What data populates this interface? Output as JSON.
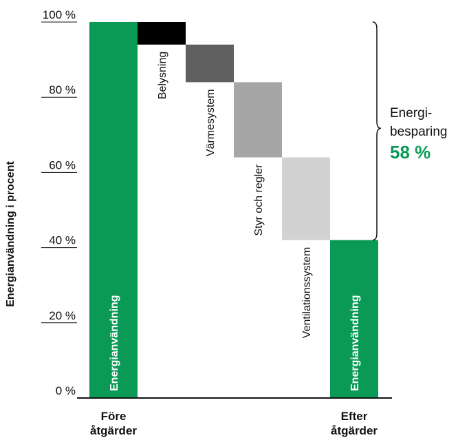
{
  "chart_data": {
    "type": "bar",
    "ylabel": "Energianvändning i procent",
    "ylim": [
      0,
      100
    ],
    "yticks": [
      "0 %",
      "20 %",
      "40 %",
      "60 %",
      "80 %",
      "100 %"
    ],
    "ytick_values": [
      0,
      20,
      40,
      60,
      80,
      100
    ],
    "colors": {
      "energy": "#0a9a55",
      "Belysning": "#000000",
      "Värmesystem": "#5f5f5f",
      "Styr och regler": "#a6a6a6",
      "Ventilationssystem": "#d2d2d2"
    },
    "bars": [
      {
        "label": "Energianvändning",
        "category": "Före\nåtgärder",
        "kind": "total",
        "from": 0,
        "to": 100
      },
      {
        "label": "Belysning",
        "kind": "step",
        "from": 94,
        "to": 100
      },
      {
        "label": "Värmesystem",
        "kind": "step",
        "from": 84,
        "to": 94
      },
      {
        "label": "Styr och regler",
        "kind": "step",
        "from": 64,
        "to": 84
      },
      {
        "label": "Ventilationssystem",
        "kind": "step",
        "from": 42,
        "to": 64
      },
      {
        "label": "Energianvändning",
        "category": "Efter\nåtgärder",
        "kind": "total",
        "from": 0,
        "to": 42
      }
    ],
    "x_categories": [
      {
        "line1": "Före",
        "line2": "åtgärder"
      },
      {
        "line1": "Efter",
        "line2": "åtgärder"
      }
    ],
    "annotation": {
      "line1": "Energi-",
      "line2": "besparing",
      "value": "58 %",
      "from": 42,
      "to": 100
    }
  }
}
